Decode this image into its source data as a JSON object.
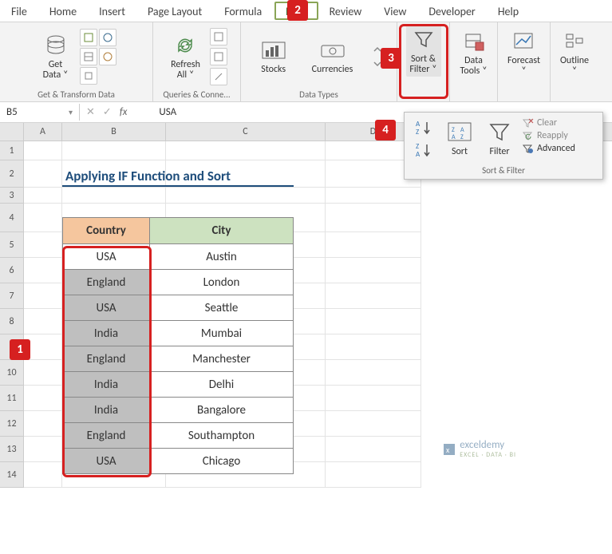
{
  "menu": {
    "file": "File",
    "home": "Home",
    "insert": "Insert",
    "pagelayout": "Page Layout",
    "formulas": "Formula",
    "data": "Data",
    "review": "Review",
    "view": "View",
    "developer": "Developer",
    "help": "Help"
  },
  "ribbon": {
    "getdata": "Get\nData ˅",
    "refresh": "Refresh\nAll ˅",
    "stocks": "Stocks",
    "currencies": "Currencies",
    "sortfilter": "Sort &\nFilter ˅",
    "datatools": "Data\nTools ˅",
    "forecast": "Forecast\n˅",
    "outline": "Outline\n˅",
    "g1": "Get & Transform Data",
    "g2": "Queries & Conne...",
    "g3": "Data Types"
  },
  "namebox": "B5",
  "formula": "USA",
  "cols": {
    "A": "A",
    "B": "B",
    "C": "C",
    "D": "D"
  },
  "title": "Applying IF Function and Sort",
  "headers": {
    "country": "Country",
    "city": "City"
  },
  "rows": [
    {
      "country": "USA",
      "city": "Austin"
    },
    {
      "country": "England",
      "city": "London"
    },
    {
      "country": "USA",
      "city": "Seattle"
    },
    {
      "country": "India",
      "city": "Mumbai"
    },
    {
      "country": "England",
      "city": "Manchester"
    },
    {
      "country": "India",
      "city": "Delhi"
    },
    {
      "country": "India",
      "city": "Bangalore"
    },
    {
      "country": "England",
      "city": "Southampton"
    },
    {
      "country": "USA",
      "city": "Chicago"
    }
  ],
  "popup": {
    "sort": "Sort",
    "filter": "Filter",
    "clear": "Clear",
    "reapply": "Reapply",
    "advanced": "Advanced",
    "label": "Sort & Filter"
  },
  "steps": {
    "s1": "1",
    "s2": "2",
    "s3": "3",
    "s4": "4"
  },
  "colors": {
    "countryHeader": "#f5c69e",
    "cityHeader": "#cde2c0",
    "selectedFill": "#bfbfbf",
    "red": "#d62020",
    "activeCell": "#ffffff"
  },
  "colwidths": {
    "A": 48,
    "B": 130,
    "C": 200,
    "D": 120
  },
  "watermark": {
    "brand": "exceldemy",
    "sub": "EXCEL · DATA · BI"
  }
}
